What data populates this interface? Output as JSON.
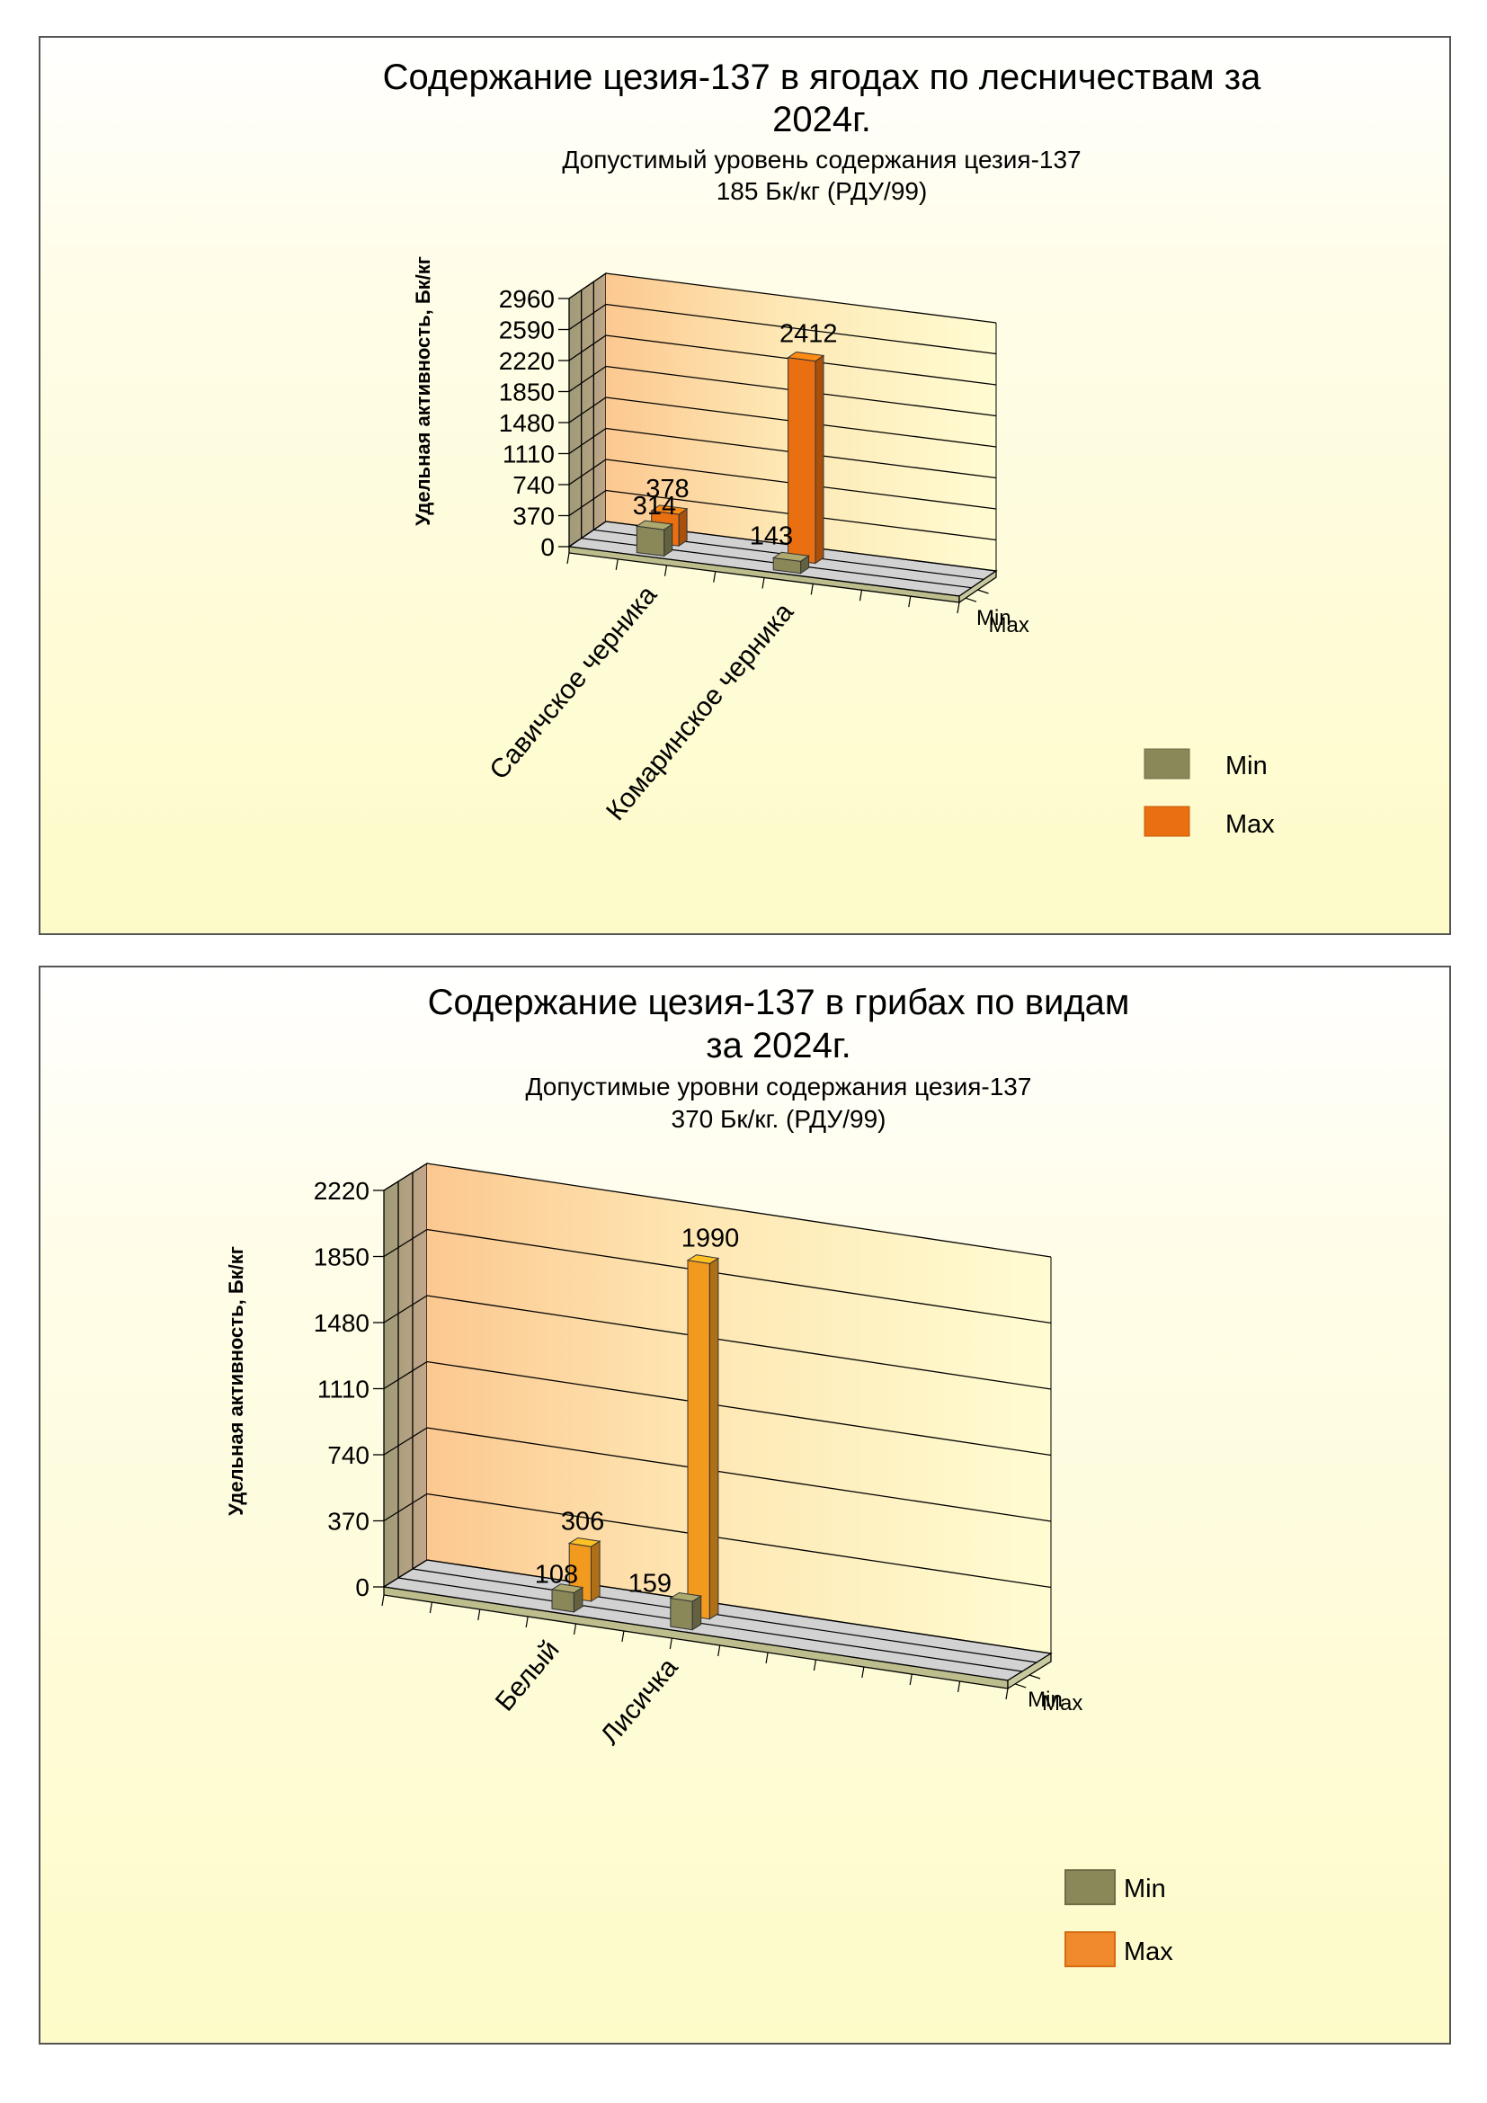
{
  "colors": {
    "min": "#8a8759",
    "max_chart1": "#e96f10",
    "max_chart2": "#f29a1e",
    "back_wall": "#fffcd2",
    "floor": "#d2d2d2",
    "side_wall": "#a19d76"
  },
  "chart_data": [
    {
      "type": "bar",
      "title": "Содержание цезия-137 в ягодах по лесничествам  за 2024г.",
      "title_lines": [
        "Содержание цезия-137 в ягодах по лесничествам  за",
        "2024г."
      ],
      "subtitle_lines": [
        "Допустимый уровень содержания цезия-137",
        "185 Бк/кг  (РДУ/99)"
      ],
      "ylabel": "Удельная активность, Бк/кг",
      "xlabel": "",
      "ylim": [
        0,
        2960
      ],
      "yticks": [
        "0",
        "370",
        "740",
        "1110",
        "1480",
        "1850",
        "2220",
        "2590",
        "2960"
      ],
      "categories": [
        "Савичское черника",
        "Комаринское черника"
      ],
      "depth_labels": [
        "Max",
        "Min"
      ],
      "series": [
        {
          "name": "Min",
          "values": [
            314,
            143
          ],
          "labels": [
            "314",
            "143"
          ]
        },
        {
          "name": "Max",
          "values": [
            378,
            2412
          ],
          "labels": [
            "378",
            "2412"
          ]
        }
      ],
      "legend": [
        "Min",
        "Max"
      ],
      "legend_position": "right",
      "grid": true
    },
    {
      "type": "bar",
      "title": "Содержание цезия-137 в грибах по видам за  2024г.",
      "title_lines": [
        "Содержание цезия-137 в грибах по видам",
        "за  2024г."
      ],
      "subtitle_lines": [
        "Допустимые уровни содержания цезия-137",
        "370 Бк/кг. (РДУ/99)"
      ],
      "ylabel": "Удельная активность, Бк/кг",
      "xlabel": "",
      "ylim": [
        0,
        2220
      ],
      "yticks": [
        "0",
        "370",
        "740",
        "1110",
        "1480",
        "1850",
        "2220"
      ],
      "categories": [
        "Белый",
        "Лисичка"
      ],
      "depth_labels": [
        "Max",
        "Min"
      ],
      "series": [
        {
          "name": "Min",
          "values": [
            108,
            159
          ],
          "labels": [
            "108",
            "159"
          ]
        },
        {
          "name": "Max",
          "values": [
            306,
            1990
          ],
          "labels": [
            "306",
            "1990"
          ]
        }
      ],
      "legend": [
        "Min",
        "Max"
      ],
      "legend_position": "right",
      "grid": true
    }
  ]
}
